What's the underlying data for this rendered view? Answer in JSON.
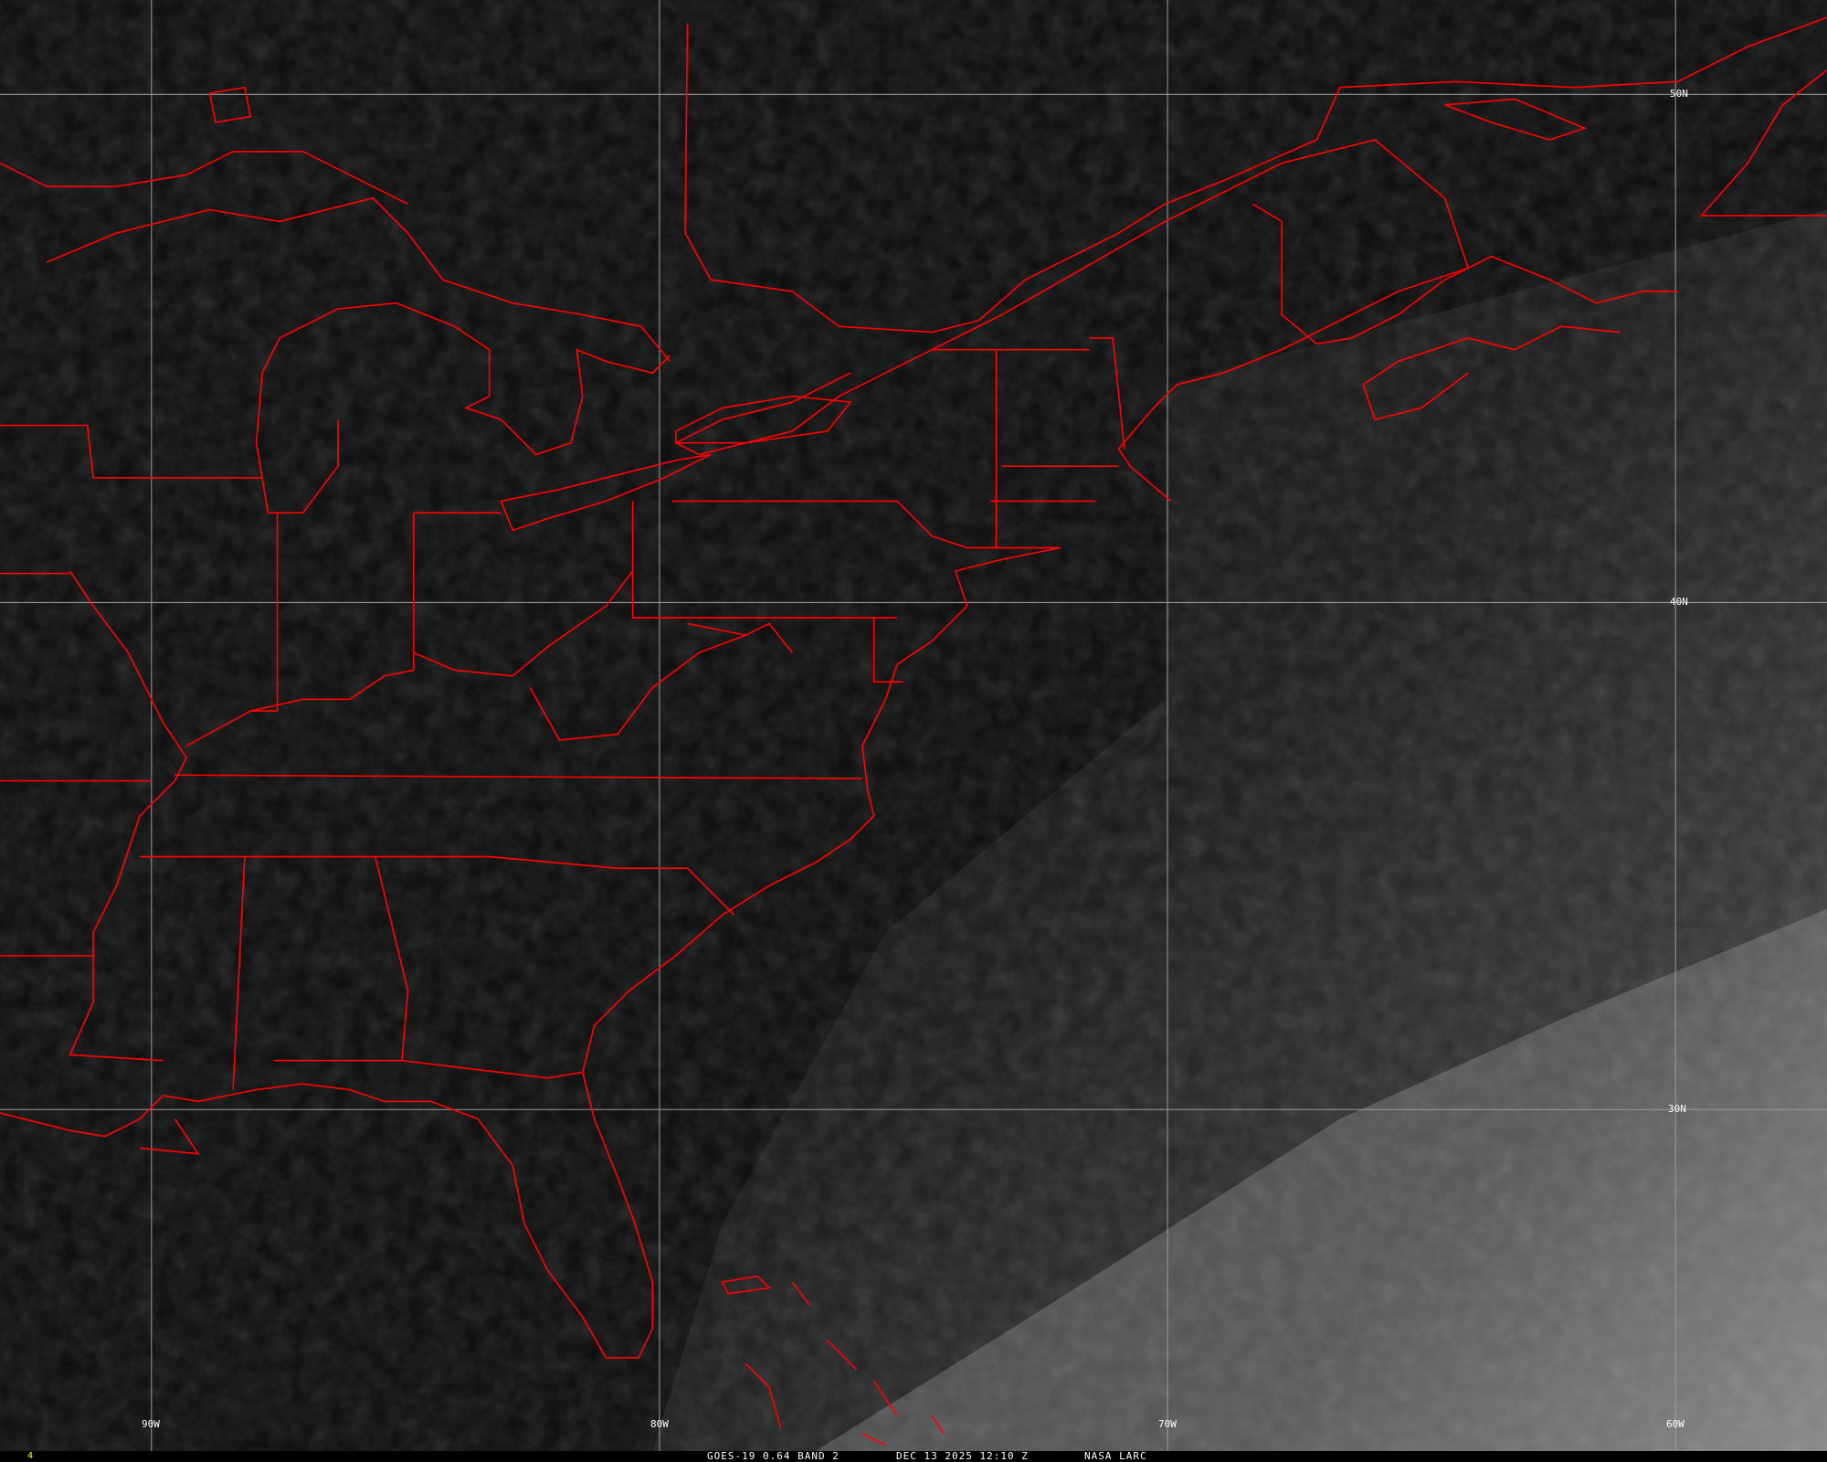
{
  "caption": {
    "satellite": "GOES-19 0.64 BAND 2",
    "datetime": "DEC 13 2025 12:10 Z",
    "source": "NASA LARC"
  },
  "frame_number": "4",
  "grid": {
    "longitude_labels": [
      "90W",
      "80W",
      "70W",
      "60W"
    ],
    "latitude_labels": [
      "50N",
      "40N",
      "30N"
    ]
  },
  "colors": {
    "boundaries": "#ff0000",
    "gridlines": "#9a9a9a",
    "background": "#0b0b0b",
    "caption_text": "#ffffff",
    "frame_number": "#ffff00"
  }
}
